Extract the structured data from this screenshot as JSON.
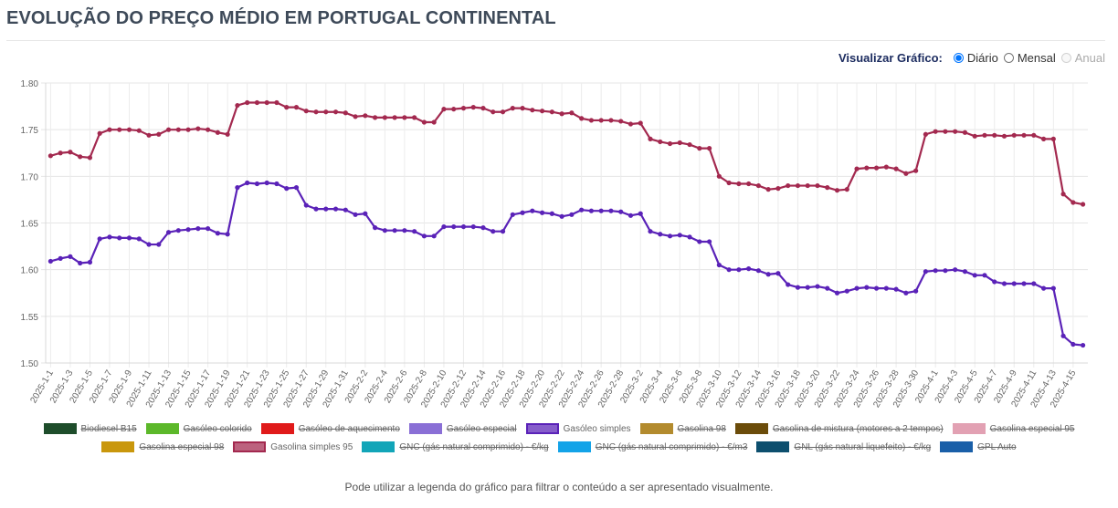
{
  "page": {
    "title": "EVOLUÇÃO DO PREÇO MÉDIO EM PORTUGAL CONTINENTAL",
    "view_label": "Visualizar Gráfico:",
    "view_options": [
      {
        "label": "Diário",
        "checked": true,
        "disabled": false
      },
      {
        "label": "Mensal",
        "checked": false,
        "disabled": false
      },
      {
        "label": "Anual",
        "checked": false,
        "disabled": true
      }
    ],
    "footnote": "Pode utilizar a legenda do gráfico para filtrar o conteúdo a ser apresentado visualmente."
  },
  "legend": [
    {
      "label": "Biodiesel B15",
      "color": "#1e4d2b",
      "hidden": true
    },
    {
      "label": "Gasóleo colorido",
      "color": "#5cb82a",
      "hidden": true
    },
    {
      "label": "Gasóleo de aquecimento",
      "color": "#e01a1a",
      "hidden": true
    },
    {
      "label": "Gasóleo especial",
      "color": "#8a6fd6",
      "hidden": true
    },
    {
      "label": "Gasóleo simples",
      "color": "#5a22b8",
      "hidden": false
    },
    {
      "label": "Gasolina 98",
      "color": "#b38b2e",
      "hidden": true
    },
    {
      "label": "Gasolina de mistura (motores a 2 tempos)",
      "color": "#6b4c0a",
      "hidden": true
    },
    {
      "label": "Gasolina especial 95",
      "color": "#e2a1b3",
      "hidden": true
    },
    {
      "label": "Gasolina especial 98",
      "color": "#c9970c",
      "hidden": true
    },
    {
      "label": "Gasolina simples 95",
      "color": "#a3294f",
      "hidden": false
    },
    {
      "label": "GNC (gás natural comprimido) - €/kg",
      "color": "#12a5b8",
      "hidden": true
    },
    {
      "label": "GNC (gás natural comprimido) - €/m3",
      "color": "#13a3e8",
      "hidden": true
    },
    {
      "label": "GNL (gás natural liquefeito) - €/kg",
      "color": "#0d4f6e",
      "hidden": true
    },
    {
      "label": "GPL Auto",
      "color": "#1a5fa8",
      "hidden": true
    }
  ],
  "chart_data": {
    "type": "line",
    "ylim": [
      1.5,
      1.8
    ],
    "yticks": [
      "1.50",
      "1.55",
      "1.60",
      "1.65",
      "1.70",
      "1.75",
      "1.80"
    ],
    "xtick_every": 2,
    "grid": true,
    "x": [
      "2025-1-1",
      "2025-1-2",
      "2025-1-3",
      "2025-1-4",
      "2025-1-5",
      "2025-1-6",
      "2025-1-7",
      "2025-1-8",
      "2025-1-9",
      "2025-1-10",
      "2025-1-11",
      "2025-1-12",
      "2025-1-13",
      "2025-1-14",
      "2025-1-15",
      "2025-1-16",
      "2025-1-17",
      "2025-1-18",
      "2025-1-19",
      "2025-1-20",
      "2025-1-21",
      "2025-1-22",
      "2025-1-23",
      "2025-1-24",
      "2025-1-25",
      "2025-1-26",
      "2025-1-27",
      "2025-1-28",
      "2025-1-29",
      "2025-1-30",
      "2025-1-31",
      "2025-2-1",
      "2025-2-2",
      "2025-2-3",
      "2025-2-4",
      "2025-2-5",
      "2025-2-6",
      "2025-2-7",
      "2025-2-8",
      "2025-2-9",
      "2025-2-10",
      "2025-2-11",
      "2025-2-12",
      "2025-2-13",
      "2025-2-14",
      "2025-2-15",
      "2025-2-16",
      "2025-2-17",
      "2025-2-18",
      "2025-2-19",
      "2025-2-20",
      "2025-2-21",
      "2025-2-22",
      "2025-2-23",
      "2025-2-24",
      "2025-2-25",
      "2025-2-26",
      "2025-2-27",
      "2025-2-28",
      "2025-3-1",
      "2025-3-2",
      "2025-3-3",
      "2025-3-4",
      "2025-3-5",
      "2025-3-6",
      "2025-3-7",
      "2025-3-8",
      "2025-3-9",
      "2025-3-10",
      "2025-3-11",
      "2025-3-12",
      "2025-3-13",
      "2025-3-14",
      "2025-3-15",
      "2025-3-16",
      "2025-3-17",
      "2025-3-18",
      "2025-3-19",
      "2025-3-20",
      "2025-3-21",
      "2025-3-22",
      "2025-3-23",
      "2025-3-24",
      "2025-3-25",
      "2025-3-26",
      "2025-3-27",
      "2025-3-28",
      "2025-3-29",
      "2025-3-30",
      "2025-3-31",
      "2025-4-1",
      "2025-4-2",
      "2025-4-3",
      "2025-4-4",
      "2025-4-5",
      "2025-4-6",
      "2025-4-7",
      "2025-4-8",
      "2025-4-9",
      "2025-4-10",
      "2025-4-11",
      "2025-4-12",
      "2025-4-13",
      "2025-4-14",
      "2025-4-15",
      "2025-4-16"
    ],
    "series": [
      {
        "name": "Gasolina simples 95",
        "color": "#a3294f",
        "values": [
          1.722,
          1.725,
          1.726,
          1.721,
          1.72,
          1.746,
          1.75,
          1.75,
          1.75,
          1.749,
          1.744,
          1.745,
          1.75,
          1.75,
          1.75,
          1.751,
          1.75,
          1.747,
          1.745,
          1.776,
          1.779,
          1.779,
          1.779,
          1.779,
          1.774,
          1.774,
          1.77,
          1.769,
          1.769,
          1.769,
          1.768,
          1.764,
          1.765,
          1.763,
          1.763,
          1.763,
          1.763,
          1.763,
          1.758,
          1.758,
          1.772,
          1.772,
          1.773,
          1.774,
          1.773,
          1.769,
          1.769,
          1.773,
          1.773,
          1.771,
          1.77,
          1.769,
          1.767,
          1.768,
          1.762,
          1.76,
          1.76,
          1.76,
          1.759,
          1.756,
          1.757,
          1.74,
          1.737,
          1.735,
          1.736,
          1.734,
          1.73,
          1.73,
          1.7,
          1.693,
          1.692,
          1.692,
          1.69,
          1.686,
          1.687,
          1.69,
          1.69,
          1.69,
          1.69,
          1.688,
          1.685,
          1.686,
          1.708,
          1.709,
          1.709,
          1.71,
          1.708,
          1.703,
          1.706,
          1.745,
          1.748,
          1.748,
          1.748,
          1.747,
          1.743,
          1.744,
          1.744,
          1.743,
          1.744,
          1.744,
          1.744,
          1.74,
          1.74,
          1.681,
          1.672,
          1.67
        ]
      },
      {
        "name": "Gasóleo simples",
        "color": "#5a22b8",
        "values": [
          1.609,
          1.612,
          1.614,
          1.607,
          1.608,
          1.633,
          1.635,
          1.634,
          1.634,
          1.633,
          1.627,
          1.627,
          1.64,
          1.642,
          1.643,
          1.644,
          1.644,
          1.639,
          1.638,
          1.688,
          1.693,
          1.692,
          1.693,
          1.692,
          1.687,
          1.688,
          1.669,
          1.665,
          1.665,
          1.665,
          1.664,
          1.659,
          1.66,
          1.645,
          1.642,
          1.642,
          1.642,
          1.641,
          1.636,
          1.636,
          1.646,
          1.646,
          1.646,
          1.646,
          1.645,
          1.641,
          1.641,
          1.659,
          1.661,
          1.663,
          1.661,
          1.66,
          1.657,
          1.659,
          1.664,
          1.663,
          1.663,
          1.663,
          1.662,
          1.658,
          1.66,
          1.641,
          1.638,
          1.636,
          1.637,
          1.635,
          1.63,
          1.63,
          1.605,
          1.6,
          1.6,
          1.601,
          1.599,
          1.595,
          1.596,
          1.584,
          1.581,
          1.581,
          1.582,
          1.58,
          1.575,
          1.577,
          1.58,
          1.581,
          1.58,
          1.58,
          1.579,
          1.575,
          1.577,
          1.598,
          1.599,
          1.599,
          1.6,
          1.598,
          1.594,
          1.594,
          1.587,
          1.585,
          1.585,
          1.585,
          1.585,
          1.58,
          1.58,
          1.529,
          1.52,
          1.519
        ]
      }
    ]
  }
}
